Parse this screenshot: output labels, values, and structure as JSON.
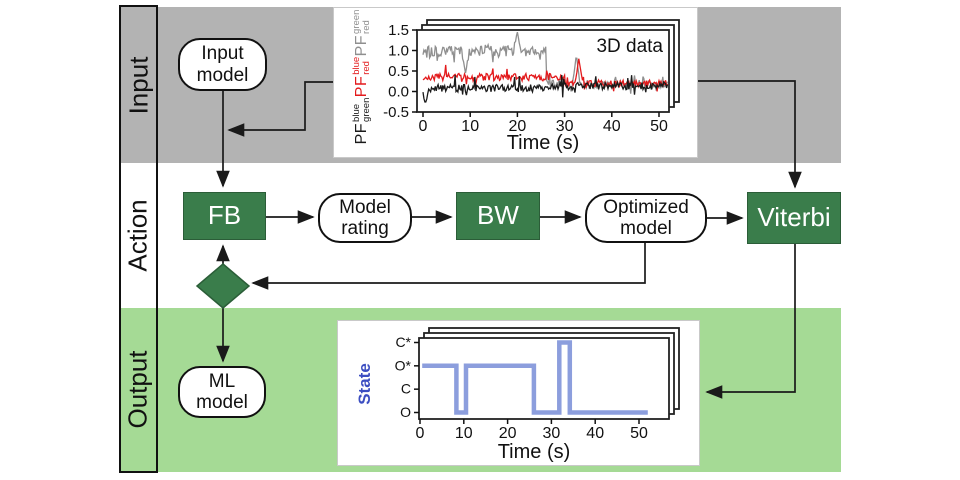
{
  "figure": {
    "sections": [
      {
        "label": "Input"
      },
      {
        "label": "Action"
      },
      {
        "label": "Output"
      }
    ]
  },
  "nodes": {
    "input_model": "Input model",
    "fb": "FB",
    "model_rating": "Model rating",
    "bw": "BW",
    "optimized_model": "Optimized model",
    "viterbi": "Viterbi",
    "ml_model": "ML model"
  },
  "colors": {
    "input_band": "#b3b3b3",
    "action_band": "#ffffff",
    "output_band": "#a5da95",
    "action_box_green": "#3a7d4b",
    "trace_gray": "#8f8f8f",
    "trace_red": "#e31a1c",
    "trace_black": "#1a1a1a",
    "state_trace": "#8c9edd",
    "state_label_blue": "#3c4ec1"
  },
  "chart_data": [
    {
      "type": "line",
      "title": "3D data",
      "xlabel": "Time (s)",
      "x_ticks": [
        0,
        10,
        20,
        30,
        40,
        50
      ],
      "y_ticks": [
        1.5,
        1.0,
        0.5,
        0.0,
        -0.5
      ],
      "xlim": [
        0,
        52
      ],
      "ylim": [
        -0.5,
        1.5
      ],
      "t_end": 52,
      "stacked_sheets": 3,
      "ylabel_parts": [
        {
          "base": "PF",
          "sup": "green",
          "sub": "red",
          "color_key": "trace_gray"
        },
        {
          "base": "PF",
          "sup": "blue",
          "sub": "red",
          "color_key": "trace_red"
        },
        {
          "base": "PF",
          "sup": "blue",
          "sub": "green",
          "color_key": "trace_black"
        }
      ],
      "series": [
        {
          "name": "PF_red^green",
          "color_key": "trace_gray",
          "segments": [
            {
              "t0": 0,
              "t1": 26,
              "mean": 1.0,
              "noise": 0.14
            },
            {
              "t0": 26,
              "t1": 52,
              "mean": 0.18,
              "noise": 0.1
            }
          ],
          "spikes": [
            {
              "t": 20,
              "v": 1.45
            },
            {
              "t": 9,
              "v": 0.45
            },
            {
              "t": 32.5,
              "v": 0.9
            }
          ]
        },
        {
          "name": "PF_red^blue",
          "color_key": "trace_red",
          "segments": [
            {
              "t0": 0,
              "t1": 30,
              "mean": 0.35,
              "noise": 0.09
            },
            {
              "t0": 30,
              "t1": 52,
              "mean": 0.2,
              "noise": 0.08
            }
          ],
          "spikes": [
            {
              "t": 33,
              "v": 0.8
            }
          ]
        },
        {
          "name": "PF_green^blue",
          "color_key": "trace_black",
          "segments": [
            {
              "t0": 0,
              "t1": 26,
              "mean": 0.08,
              "noise": 0.09
            },
            {
              "t0": 26,
              "t1": 52,
              "mean": 0.13,
              "noise": 0.09
            }
          ],
          "spikes": [
            {
              "t": 0.5,
              "v": -0.3
            }
          ]
        }
      ]
    },
    {
      "type": "step",
      "xlabel": "Time (s)",
      "ylabel": "State",
      "x_ticks": [
        0,
        10,
        20,
        30,
        40,
        50
      ],
      "categories": [
        "O",
        "C",
        "O*",
        "C*"
      ],
      "t_start": 0.5,
      "t_end": 52,
      "stacked_sheets": 3,
      "steps": [
        {
          "t": 0.5,
          "state": "O*"
        },
        {
          "t": 8.3,
          "state": "O"
        },
        {
          "t": 10.5,
          "state": "O*"
        },
        {
          "t": 26,
          "state": "O"
        },
        {
          "t": 31.8,
          "state": "C*"
        },
        {
          "t": 34.2,
          "state": "O"
        }
      ]
    }
  ]
}
